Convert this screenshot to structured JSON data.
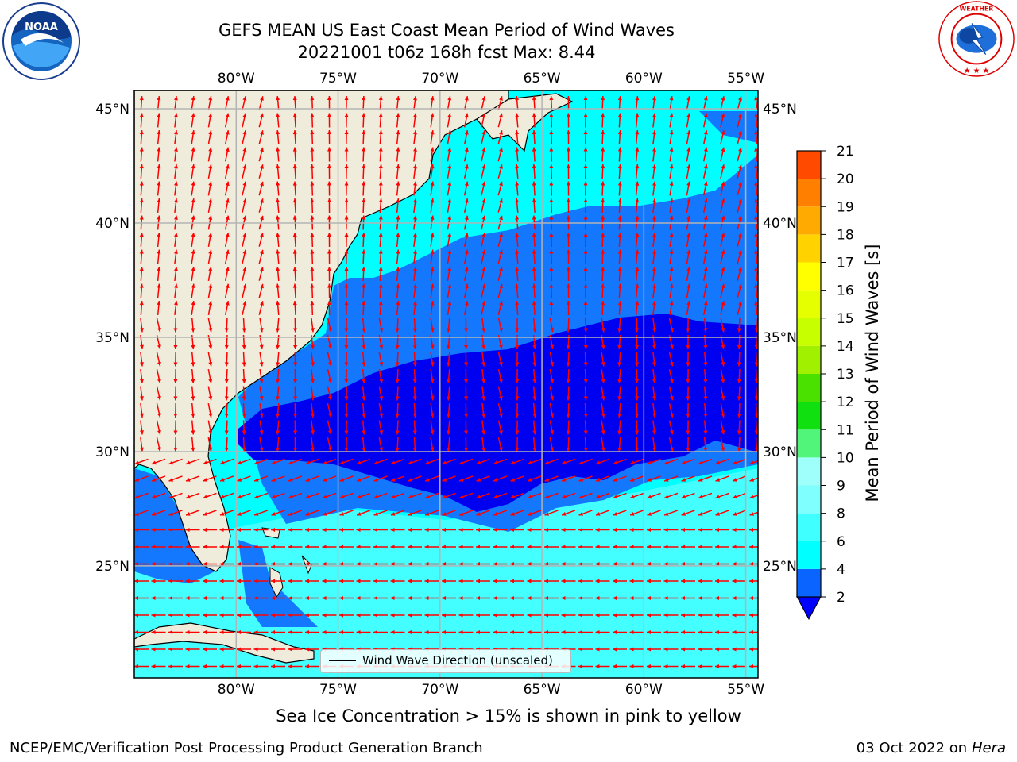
{
  "title": {
    "line1": "GEFS MEAN US East Coast Mean Period of Wind Waves",
    "line2": "20221001 t06z 168h fcst   Max: 8.44"
  },
  "logos": {
    "left": "NOAA",
    "left_ring_text": "NATIONAL OCEANIC AND ATMOSPHERIC ADMINISTRATION · U.S. DEPARTMENT OF COMMERCE",
    "right_ring_text": "NATIONAL WEATHER SERVICE"
  },
  "axes": {
    "lon_labels": [
      "80°W",
      "75°W",
      "70°W",
      "65°W",
      "60°W",
      "55°W"
    ],
    "lon_values": [
      -80,
      -75,
      -70,
      -65,
      -60,
      -55
    ],
    "lat_labels": [
      "45°N",
      "40°N",
      "35°N",
      "30°N",
      "25°N"
    ],
    "lat_values": [
      45,
      40,
      35,
      30,
      25
    ],
    "lon_range": [
      -85,
      -54.4
    ],
    "lat_range": [
      20.1,
      45.8
    ],
    "grid": true
  },
  "colorbar": {
    "label": "Mean Period of Wind Waves [s]",
    "ticks": [
      "2",
      "4",
      "6",
      "8",
      "9",
      "10",
      "11",
      "12",
      "13",
      "14",
      "15",
      "16",
      "17",
      "18",
      "19",
      "20",
      "21"
    ],
    "colors": [
      "#0a64ff",
      "#00ffff",
      "#40ffff",
      "#80ffff",
      "#9ffffa",
      "#50f57a",
      "#10e010",
      "#4ae000",
      "#a0f000",
      "#c8ff00",
      "#e6ff00",
      "#ffff00",
      "#ffd200",
      "#ffaa00",
      "#ff8000",
      "#ff4a00",
      "#ff1800",
      "#ff0000"
    ],
    "extend_color": "#0000ff"
  },
  "legend": {
    "label": "Wind Wave Direction (unscaled)"
  },
  "colors": {
    "land": "#efecdb",
    "deep_blue": "#0000f0",
    "mid_blue": "#1478ff",
    "cyan": "#00ffff",
    "light_cyan": "#44ffff",
    "arrow": "#ff0000",
    "grid": "#b4b4b4"
  },
  "note": "Sea Ice Concentration > 15% is shown in pink to yellow",
  "footer": {
    "left": "NCEP/EMC/Verification Post Processing Product Generation Branch",
    "right_date": "03 Oct 2022 on ",
    "right_host": "Hera"
  }
}
